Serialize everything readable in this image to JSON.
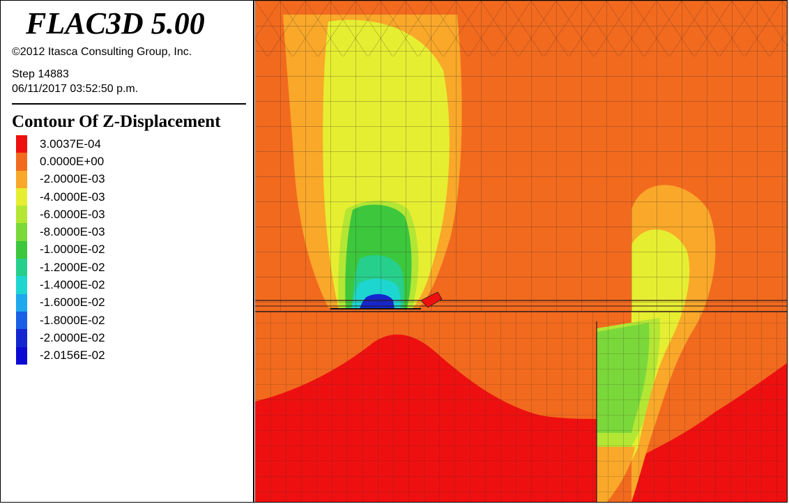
{
  "window": {
    "app_title": "FLAC3D 5.00",
    "copyright": "©2012 Itasca Consulting Group, Inc.",
    "step": "Step 14883",
    "timestamp": "06/11/2017 03:52:50 p.m."
  },
  "legend": {
    "title": "Contour Of Z-Displacement",
    "items": [
      {
        "label": "3.0037E-04",
        "color": "#ee1010"
      },
      {
        "label": "0.0000E+00",
        "color": "#f26a1e"
      },
      {
        "label": "-2.0000E-03",
        "color": "#f9a829"
      },
      {
        "label": "-4.0000E-03",
        "color": "#e6ee31"
      },
      {
        "label": "-6.0000E-03",
        "color": "#b4e634"
      },
      {
        "label": "-8.0000E-03",
        "color": "#7ad83a"
      },
      {
        "label": "-1.0000E-02",
        "color": "#3cc73c"
      },
      {
        "label": "-1.2000E-02",
        "color": "#27cf8c"
      },
      {
        "label": "-1.4000E-02",
        "color": "#1ed6d0"
      },
      {
        "label": "-1.6000E-02",
        "color": "#1ea8ee"
      },
      {
        "label": "-1.8000E-02",
        "color": "#1a60e6"
      },
      {
        "label": "-2.0000E-02",
        "color": "#1426d0"
      },
      {
        "label": "-2.0156E-02",
        "color": "#0c0ad2"
      }
    ]
  }
}
